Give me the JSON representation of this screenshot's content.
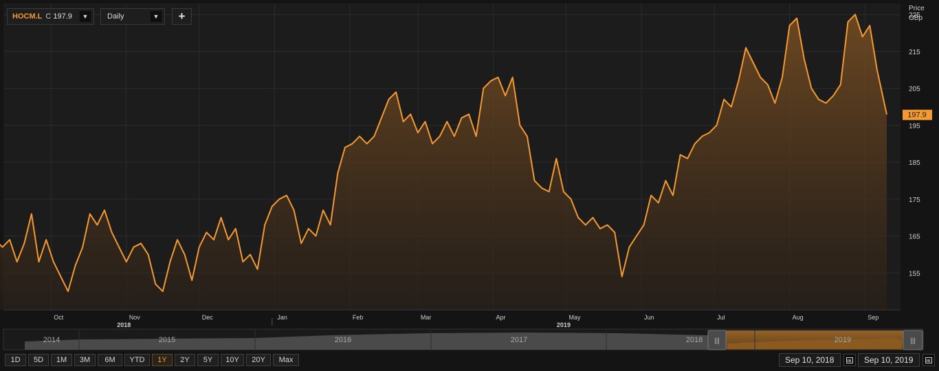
{
  "toolbar": {
    "symbol": "HOCM.L",
    "close_prefix": "C",
    "close_value": "197.9",
    "interval": "Daily",
    "add_label": "+"
  },
  "colors": {
    "accent": "#f59a32",
    "background": "#141414",
    "grid": "#2c2c2c"
  },
  "chart_data": {
    "type": "area",
    "title": "",
    "ylabel": "Price",
    "yunit": "GBp",
    "ylim": [
      145,
      228
    ],
    "yticks": [
      155,
      165,
      175,
      185,
      195,
      205,
      215,
      225
    ],
    "last_value_label": "197.9",
    "x_start": "2018-09-10",
    "x_end": "2019-09-10",
    "month_ticks": [
      {
        "label": "Sep",
        "date": "2018-09-01"
      },
      {
        "label": "Oct",
        "date": "2018-10-01"
      },
      {
        "label": "Nov",
        "date": "2018-11-01"
      },
      {
        "label": "Dec",
        "date": "2018-12-01"
      },
      {
        "label": "Jan",
        "date": "2019-01-01"
      },
      {
        "label": "Feb",
        "date": "2019-02-01"
      },
      {
        "label": "Mar",
        "date": "2019-03-01"
      },
      {
        "label": "Apr",
        "date": "2019-04-01"
      },
      {
        "label": "May",
        "date": "2019-05-01"
      },
      {
        "label": "Jun",
        "date": "2019-06-01"
      },
      {
        "label": "Jul",
        "date": "2019-07-01"
      },
      {
        "label": "Aug",
        "date": "2019-08-01"
      },
      {
        "label": "Sep",
        "date": "2019-09-01"
      }
    ],
    "year_labels": [
      {
        "label": "2018",
        "date": "2018-10-31"
      },
      {
        "label": "2019",
        "date": "2019-04-30"
      }
    ],
    "year_divider_date": "2018-12-31",
    "grid": true,
    "series": [
      {
        "name": "HOCM.L",
        "x": [
          "2018-09-01",
          "2018-09-05",
          "2018-09-08",
          "2018-09-11",
          "2018-09-14",
          "2018-09-17",
          "2018-09-20",
          "2018-09-23",
          "2018-09-26",
          "2018-09-29",
          "2018-10-02",
          "2018-10-05",
          "2018-10-08",
          "2018-10-11",
          "2018-10-14",
          "2018-10-17",
          "2018-10-20",
          "2018-10-23",
          "2018-10-26",
          "2018-10-29",
          "2018-11-01",
          "2018-11-04",
          "2018-11-07",
          "2018-11-10",
          "2018-11-13",
          "2018-11-16",
          "2018-11-19",
          "2018-11-22",
          "2018-11-25",
          "2018-11-28",
          "2018-12-01",
          "2018-12-04",
          "2018-12-07",
          "2018-12-10",
          "2018-12-13",
          "2018-12-16",
          "2018-12-19",
          "2018-12-22",
          "2018-12-25",
          "2018-12-28",
          "2018-12-31",
          "2019-01-03",
          "2019-01-06",
          "2019-01-09",
          "2019-01-12",
          "2019-01-15",
          "2019-01-18",
          "2019-01-21",
          "2019-01-24",
          "2019-01-27",
          "2019-01-30",
          "2019-02-02",
          "2019-02-05",
          "2019-02-08",
          "2019-02-11",
          "2019-02-14",
          "2019-02-17",
          "2019-02-20",
          "2019-02-23",
          "2019-02-26",
          "2019-03-01",
          "2019-03-04",
          "2019-03-07",
          "2019-03-10",
          "2019-03-13",
          "2019-03-16",
          "2019-03-19",
          "2019-03-22",
          "2019-03-25",
          "2019-03-28",
          "2019-03-31",
          "2019-04-03",
          "2019-04-06",
          "2019-04-09",
          "2019-04-12",
          "2019-04-15",
          "2019-04-18",
          "2019-04-21",
          "2019-04-24",
          "2019-04-27",
          "2019-04-30",
          "2019-05-03",
          "2019-05-06",
          "2019-05-09",
          "2019-05-12",
          "2019-05-15",
          "2019-05-18",
          "2019-05-21",
          "2019-05-24",
          "2019-05-27",
          "2019-05-30",
          "2019-06-02",
          "2019-06-05",
          "2019-06-08",
          "2019-06-11",
          "2019-06-14",
          "2019-06-17",
          "2019-06-20",
          "2019-06-23",
          "2019-06-26",
          "2019-06-29",
          "2019-07-02",
          "2019-07-05",
          "2019-07-08",
          "2019-07-11",
          "2019-07-14",
          "2019-07-17",
          "2019-07-20",
          "2019-07-23",
          "2019-07-26",
          "2019-07-29",
          "2019-08-01",
          "2019-08-04",
          "2019-08-07",
          "2019-08-10",
          "2019-08-13",
          "2019-08-16",
          "2019-08-19",
          "2019-08-22",
          "2019-08-25",
          "2019-08-28",
          "2019-08-31",
          "2019-09-03",
          "2019-09-06",
          "2019-09-10"
        ],
        "values": [
          162,
          156,
          164,
          162,
          164,
          158,
          163,
          171,
          158,
          164,
          158,
          154,
          150,
          157,
          162,
          171,
          168,
          172,
          166,
          162,
          158,
          162,
          163,
          160,
          152,
          150,
          158,
          164,
          160,
          153,
          162,
          166,
          164,
          170,
          164,
          167,
          158,
          160,
          156,
          168,
          173,
          175,
          176,
          172,
          163,
          167,
          165,
          172,
          168,
          182,
          189,
          190,
          192,
          190,
          192,
          197,
          202,
          204,
          196,
          198,
          193,
          196,
          190,
          192,
          196,
          192,
          197,
          198,
          192,
          205,
          207,
          208,
          203,
          208,
          195,
          192,
          180,
          178,
          177,
          186,
          177,
          175,
          170,
          168,
          170,
          167,
          168,
          166,
          154,
          162,
          165,
          168,
          176,
          174,
          180,
          176,
          187,
          186,
          190,
          192,
          193,
          195,
          202,
          200,
          207,
          216,
          212,
          208,
          206,
          201,
          208,
          222,
          224,
          213,
          205,
          202,
          201,
          203,
          206,
          223,
          225,
          219,
          222,
          210,
          197.9
        ]
      }
    ]
  },
  "navigator": {
    "year_labels": [
      "2014",
      "2015",
      "2016",
      "2017",
      "2018",
      "2019"
    ],
    "handle_label": "|||"
  },
  "range_buttons": [
    "1D",
    "5D",
    "1M",
    "3M",
    "6M",
    "YTD",
    "1Y",
    "2Y",
    "5Y",
    "10Y",
    "20Y",
    "Max"
  ],
  "active_range": "1Y",
  "date_from": "Sep 10, 2018",
  "date_to": "Sep 10, 2019"
}
